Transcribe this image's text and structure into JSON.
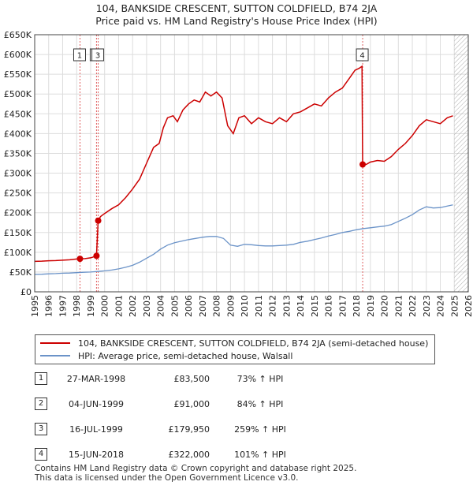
{
  "title": {
    "line1": "104, BANKSIDE CRESCENT, SUTTON COLDFIELD, B74 2JA",
    "line2": "Price paid vs. HM Land Registry's House Price Index (HPI)"
  },
  "legend": {
    "property_label": "104, BANKSIDE CRESCENT, SUTTON COLDFIELD, B74 2JA (semi-detached house)",
    "hpi_label": "HPI: Average price, semi-detached house, Walsall"
  },
  "sales": [
    {
      "num": "1",
      "date": "27-MAR-1998",
      "price": "£83,500",
      "hpi": "73% ↑ HPI"
    },
    {
      "num": "2",
      "date": "04-JUN-1999",
      "price": "£91,000",
      "hpi": "84% ↑ HPI"
    },
    {
      "num": "3",
      "date": "16-JUL-1999",
      "price": "£179,950",
      "hpi": "259% ↑ HPI"
    },
    {
      "num": "4",
      "date": "15-JUN-2018",
      "price": "£322,000",
      "hpi": "101% ↑ HPI"
    }
  ],
  "footer": {
    "line1": "Contains HM Land Registry data © Crown copyright and database right 2025.",
    "line2": "This data is licensed under the Open Government Licence v3.0."
  },
  "colors": {
    "property": "#cc0000",
    "hpi": "#6b93c8",
    "grid": "#dddddd",
    "plot_bg": "#ffffff",
    "marker_line": "#e06060"
  },
  "chart_data": {
    "type": "line",
    "title": "104, BANKSIDE CRESCENT, SUTTON COLDFIELD, B74 2JA — Price paid vs. HM Land Registry's House Price Index (HPI)",
    "xlabel": "",
    "ylabel": "",
    "xlim": [
      1995.0,
      2026.0
    ],
    "ylim": [
      0,
      650000
    ],
    "x_ticks": [
      1995,
      1996,
      1997,
      1998,
      1999,
      2000,
      2001,
      2002,
      2003,
      2004,
      2005,
      2006,
      2007,
      2008,
      2009,
      2010,
      2011,
      2012,
      2013,
      2014,
      2015,
      2016,
      2017,
      2018,
      2019,
      2020,
      2021,
      2022,
      2023,
      2024,
      2025,
      2026
    ],
    "y_ticks": [
      0,
      50000,
      100000,
      150000,
      200000,
      250000,
      300000,
      350000,
      400000,
      450000,
      500000,
      550000,
      600000,
      650000
    ],
    "y_tick_labels": [
      "£0",
      "£50K",
      "£100K",
      "£150K",
      "£200K",
      "£250K",
      "£300K",
      "£350K",
      "£400K",
      "£450K",
      "£500K",
      "£550K",
      "£600K",
      "£650K"
    ],
    "grid": true,
    "future_hatch_from": 2025.0,
    "series": [
      {
        "name": "104, BANKSIDE CRESCENT, SUTTON COLDFIELD, B74 2JA (semi-detached house)",
        "x": [
          1995.0,
          1995.5,
          1996.0,
          1996.5,
          1997.0,
          1997.5,
          1998.0,
          1998.24,
          1998.6,
          1999.0,
          1999.42,
          1999.54,
          1999.7,
          2000.0,
          2000.5,
          2001.0,
          2001.5,
          2002.0,
          2002.5,
          2003.0,
          2003.5,
          2003.9,
          2004.2,
          2004.5,
          2004.9,
          2005.2,
          2005.6,
          2006.0,
          2006.4,
          2006.8,
          2007.2,
          2007.6,
          2008.0,
          2008.4,
          2008.8,
          2009.2,
          2009.6,
          2010.0,
          2010.5,
          2011.0,
          2011.5,
          2012.0,
          2012.5,
          2013.0,
          2013.5,
          2014.0,
          2014.5,
          2015.0,
          2015.5,
          2016.0,
          2016.5,
          2017.0,
          2017.5,
          2017.9,
          2018.2,
          2018.4,
          2018.45,
          2018.7,
          2019.0,
          2019.5,
          2020.0,
          2020.5,
          2021.0,
          2021.5,
          2022.0,
          2022.5,
          2023.0,
          2023.5,
          2024.0,
          2024.5,
          2024.9
        ],
        "values": [
          77000,
          77500,
          78500,
          79000,
          80000,
          81000,
          83000,
          83500,
          84000,
          86000,
          91000,
          179950,
          190000,
          198000,
          210000,
          220000,
          238000,
          260000,
          285000,
          325000,
          365000,
          375000,
          415000,
          440000,
          445000,
          430000,
          460000,
          475000,
          485000,
          480000,
          505000,
          495000,
          505000,
          490000,
          420000,
          400000,
          440000,
          445000,
          425000,
          440000,
          430000,
          425000,
          440000,
          430000,
          450000,
          455000,
          465000,
          475000,
          470000,
          490000,
          505000,
          515000,
          540000,
          560000,
          565000,
          570000,
          322000,
          322000,
          328000,
          332000,
          330000,
          342000,
          360000,
          375000,
          395000,
          420000,
          435000,
          430000,
          425000,
          440000,
          445000
        ]
      },
      {
        "name": "HPI: Average price, semi-detached house, Walsall",
        "x": [
          1995.0,
          1995.5,
          1996.0,
          1996.5,
          1997.0,
          1997.5,
          1998.0,
          1998.5,
          1999.0,
          1999.5,
          2000.0,
          2000.5,
          2001.0,
          2001.5,
          2002.0,
          2002.5,
          2003.0,
          2003.5,
          2004.0,
          2004.5,
          2005.0,
          2005.5,
          2006.0,
          2006.5,
          2007.0,
          2007.5,
          2008.0,
          2008.5,
          2009.0,
          2009.5,
          2010.0,
          2010.5,
          2011.0,
          2011.5,
          2012.0,
          2012.5,
          2013.0,
          2013.5,
          2014.0,
          2014.5,
          2015.0,
          2015.5,
          2016.0,
          2016.5,
          2017.0,
          2017.5,
          2018.0,
          2018.5,
          2019.0,
          2019.5,
          2020.0,
          2020.5,
          2021.0,
          2021.5,
          2022.0,
          2022.5,
          2023.0,
          2023.5,
          2024.0,
          2024.5,
          2024.9
        ],
        "values": [
          44000,
          44500,
          45500,
          46000,
          47000,
          47500,
          48500,
          49500,
          50000,
          51500,
          53000,
          55000,
          58000,
          62000,
          67000,
          75000,
          85000,
          95000,
          108000,
          118000,
          124000,
          128000,
          132000,
          135000,
          138000,
          140000,
          140000,
          135000,
          118000,
          115000,
          120000,
          119000,
          117000,
          116000,
          116000,
          117000,
          118000,
          120000,
          125000,
          128000,
          132000,
          136000,
          141000,
          145000,
          150000,
          153000,
          157000,
          160000,
          162000,
          164000,
          166000,
          170000,
          178000,
          186000,
          195000,
          207000,
          215000,
          212000,
          213000,
          217000,
          220000
        ]
      }
    ],
    "sale_points": [
      {
        "label": "1",
        "x": 1998.24,
        "value": 83500
      },
      {
        "label": "2",
        "x": 1999.42,
        "value": 91000
      },
      {
        "label": "3",
        "x": 1999.54,
        "value": 179950
      },
      {
        "label": "4",
        "x": 2018.45,
        "value": 322000
      }
    ]
  }
}
